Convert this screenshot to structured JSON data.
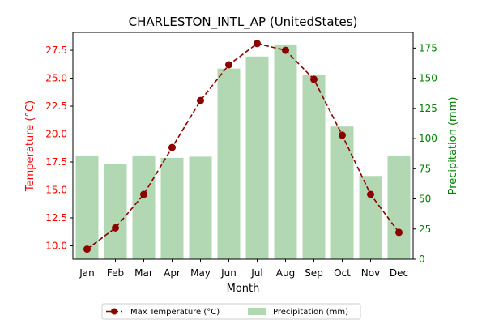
{
  "chart_data": {
    "type": "bar+line",
    "title": "CHARLESTON_INTL_AP (UnitedStates)",
    "xlabel": "Month",
    "ylabel_left": "Temperature (°C)",
    "ylabel_right": "Precipitation (mm)",
    "categories": [
      "Jan",
      "Feb",
      "Mar",
      "Apr",
      "May",
      "Jun",
      "Jul",
      "Aug",
      "Sep",
      "Oct",
      "Nov",
      "Dec"
    ],
    "ylim_left": [
      8.8,
      29.1
    ],
    "ylim_right": [
      0,
      188
    ],
    "yticks_left": [
      "10.0",
      "12.5",
      "15.0",
      "17.5",
      "20.0",
      "22.5",
      "25.0",
      "27.5"
    ],
    "yticks_right": [
      "0",
      "25",
      "50",
      "75",
      "100",
      "125",
      "150",
      "175"
    ],
    "grid": false,
    "legend_position": "bottom-center",
    "series": [
      {
        "name": "Max Temperature (°C)",
        "kind": "line",
        "axis": "left",
        "color": "#8b0000",
        "values": [
          9.7,
          11.6,
          14.6,
          18.8,
          23.0,
          26.2,
          28.1,
          27.5,
          24.9,
          19.9,
          14.6,
          11.2
        ]
      },
      {
        "name": "Precipitation (mm)",
        "kind": "bar",
        "axis": "right",
        "color": "#b1d8b2",
        "values": [
          86,
          79,
          86,
          84,
          85,
          158,
          168,
          178,
          153,
          110,
          69,
          86
        ]
      }
    ],
    "colors": {
      "left_axis": "#ff0000",
      "right_axis": "#008000",
      "text": "#000000"
    }
  }
}
